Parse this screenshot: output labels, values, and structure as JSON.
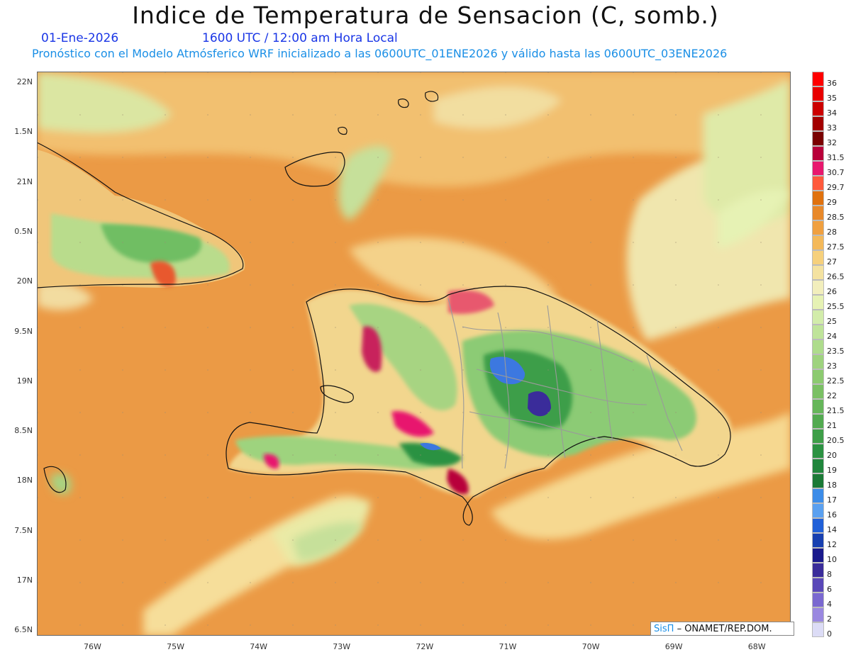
{
  "title": "Indice de Temperatura de Sensacion (C, somb.)",
  "date": "01-Ene-2026",
  "time": "1600 UTC / 12:00 am Hora Local",
  "info": "Pronóstico con el Modelo Atmósferico WRF inicializado a las 0600UTC_01ENE2026 y válido hasta las  0600UTC_03ENE2026",
  "credit": {
    "brand": "SisΠ",
    "text": "– ONAMET/REP.DOM."
  },
  "lon_ticks": [
    "76W",
    "75W",
    "74W",
    "73W",
    "72W",
    "71W",
    "70W",
    "69W",
    "68W"
  ],
  "lat_ticks": [
    "22N",
    "1.5N",
    "21N",
    "0.5N",
    "20N",
    "9.5N",
    "19N",
    "8.5N",
    "18N",
    "7.5N",
    "17N",
    "6.5N"
  ],
  "colorbar": {
    "levels": [
      "36",
      "35",
      "34",
      "33",
      "32",
      "31.5",
      "30.7",
      "29.7",
      "29",
      "28.5",
      "28",
      "27.5",
      "27",
      "26.5",
      "26",
      "25.5",
      "25",
      "24",
      "23.5",
      "23",
      "22.5",
      "22",
      "21.5",
      "21",
      "20.5",
      "20",
      "19",
      "18",
      "17",
      "16",
      "14",
      "12",
      "10",
      "8",
      "6",
      "4",
      "2",
      "0"
    ],
    "colors": [
      "#ff0000",
      "#e80000",
      "#cc0000",
      "#a30000",
      "#7a0000",
      "#b8003a",
      "#e8186e",
      "#ff5a3c",
      "#e0720e",
      "#e8892a",
      "#f0a040",
      "#f4b95a",
      "#f6d07c",
      "#f4e2a0",
      "#f2eebc",
      "#e6f2b4",
      "#d2ecaa",
      "#bfe49a",
      "#aedc8c",
      "#9ed37e",
      "#8cca70",
      "#7ac064",
      "#66b65a",
      "#52aa50",
      "#3e9e48",
      "#2c9242",
      "#20863c",
      "#1b7a36",
      "#3c8ce8",
      "#5aa0f0",
      "#2060d8",
      "#1840b0",
      "#1a1a8c",
      "#3a2c9a",
      "#5a48b8",
      "#7a68d0",
      "#9a88e0",
      "#dcdcf6"
    ]
  }
}
